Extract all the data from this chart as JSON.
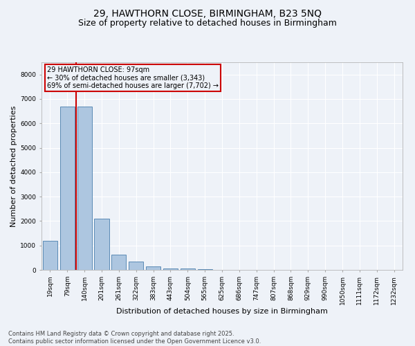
{
  "title1": "29, HAWTHORN CLOSE, BIRMINGHAM, B23 5NQ",
  "title2": "Size of property relative to detached houses in Birmingham",
  "xlabel": "Distribution of detached houses by size in Birmingham",
  "ylabel": "Number of detached properties",
  "categories": [
    "19sqm",
    "79sqm",
    "140sqm",
    "201sqm",
    "261sqm",
    "322sqm",
    "383sqm",
    "443sqm",
    "504sqm",
    "565sqm",
    "625sqm",
    "686sqm",
    "747sqm",
    "807sqm",
    "868sqm",
    "929sqm",
    "990sqm",
    "1050sqm",
    "1111sqm",
    "1172sqm",
    "1232sqm"
  ],
  "values": [
    1200,
    6700,
    6700,
    2100,
    620,
    340,
    130,
    60,
    50,
    20,
    10,
    5,
    3,
    2,
    1,
    1,
    0,
    0,
    0,
    0,
    0
  ],
  "bar_color": "#adc6e0",
  "bar_edge_color": "#5a8ab5",
  "vline_color": "#cc0000",
  "vline_x": 1.5,
  "annotation_title": "29 HAWTHORN CLOSE: 97sqm",
  "annotation_line1": "← 30% of detached houses are smaller (3,343)",
  "annotation_line2": "69% of semi-detached houses are larger (7,702) →",
  "annotation_box_color": "#cc0000",
  "ylim": [
    0,
    8500
  ],
  "yticks": [
    0,
    1000,
    2000,
    3000,
    4000,
    5000,
    6000,
    7000,
    8000
  ],
  "footer1": "Contains HM Land Registry data © Crown copyright and database right 2025.",
  "footer2": "Contains public sector information licensed under the Open Government Licence v3.0.",
  "bg_color": "#eef2f8",
  "grid_color": "#ffffff",
  "title_fontsize": 10,
  "subtitle_fontsize": 9,
  "axis_label_fontsize": 8,
  "tick_fontsize": 6.5,
  "footer_fontsize": 6
}
